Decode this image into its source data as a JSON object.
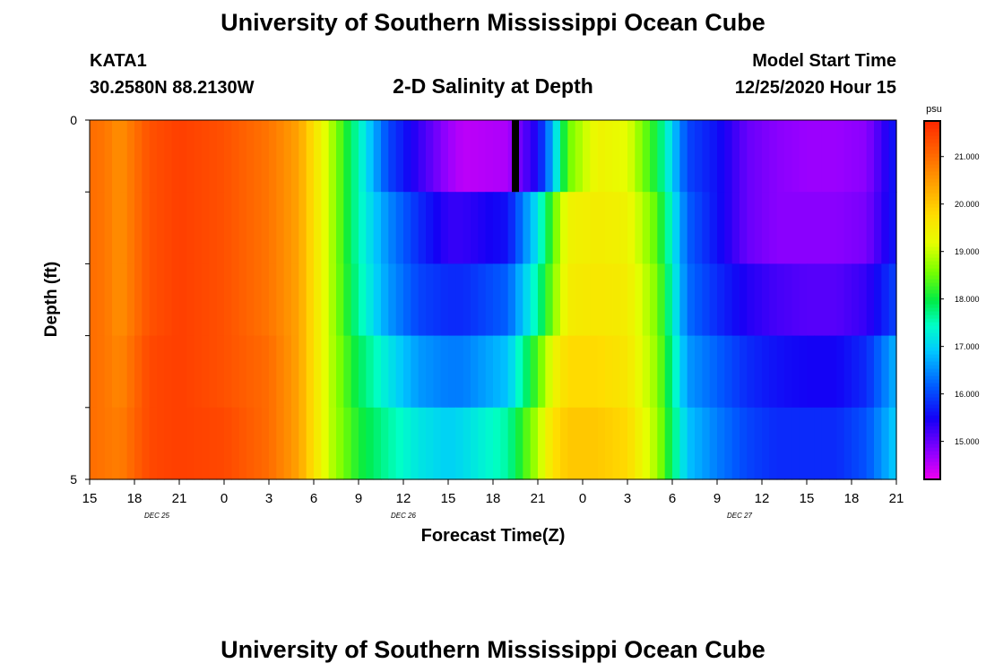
{
  "page": {
    "title_top": "University of Southern Mississippi Ocean Cube",
    "title_bottom": "University of Southern Mississippi Ocean Cube",
    "station": "KATA1",
    "coordinates": "30.2580N 88.2130W",
    "plot_title": "2-D Salinity at Depth",
    "model_start_label": "Model Start Time",
    "model_start_value": "12/25/2020 Hour 15"
  },
  "chart_data": {
    "type": "heatmap",
    "title": "2-D Salinity at Depth",
    "xlabel": "Forecast Time(Z)",
    "ylabel": "Depth (ft)",
    "y_ticks": [
      "0",
      "5"
    ],
    "ylim": [
      0,
      5
    ],
    "x_hours_start": 0,
    "x_hours_end": 54,
    "x_tick_labels": [
      "15",
      "18",
      "21",
      "0",
      "3",
      "6",
      "9",
      "12",
      "15",
      "18",
      "21",
      "0",
      "3",
      "6",
      "9",
      "12",
      "15",
      "18",
      "21"
    ],
    "date_labels": [
      {
        "label": "DEC  25",
        "hour": 4.5
      },
      {
        "label": "DEC  26",
        "hour": 21
      },
      {
        "label": "DEC  27",
        "hour": 43.5
      }
    ],
    "colorbar": {
      "unit": "psu",
      "min": 14.2,
      "max": 21.75,
      "tick_labels": [
        "21.000",
        "20.000",
        "19.000",
        "18.000",
        "17.000",
        "16.000",
        "15.000"
      ],
      "tick_values": [
        21,
        20,
        19,
        18,
        17,
        16,
        15
      ]
    },
    "depth_bins": 5,
    "key_hours": [
      0,
      1,
      2,
      4,
      6,
      9,
      12,
      14,
      16,
      18,
      20,
      22,
      24,
      25,
      28,
      30,
      31,
      32,
      34,
      36,
      38,
      40,
      42,
      44,
      46,
      48,
      50,
      52,
      54
    ],
    "key_values": [
      [
        21.0,
        20.9,
        20.6,
        21.3,
        21.5,
        21.3,
        20.9,
        20.4,
        19.0,
        17.5,
        16.0,
        15.3,
        14.7,
        14.5,
        14.6,
        15.5,
        16.8,
        18.5,
        19.4,
        19.2,
        18.0,
        16.0,
        15.6,
        15.0,
        14.8,
        14.7,
        14.7,
        14.8,
        15.7
      ],
      [
        21.0,
        20.9,
        20.6,
        21.3,
        21.5,
        21.3,
        20.9,
        20.4,
        19.0,
        17.5,
        16.5,
        15.8,
        15.3,
        15.3,
        15.6,
        17.2,
        18.4,
        19.4,
        19.5,
        19.4,
        18.4,
        16.2,
        15.6,
        15.0,
        14.8,
        14.8,
        14.8,
        14.9,
        15.7
      ],
      [
        21.0,
        20.9,
        20.6,
        21.3,
        21.5,
        21.3,
        20.9,
        20.4,
        19.0,
        17.6,
        16.6,
        16.0,
        15.8,
        15.8,
        16.2,
        17.6,
        18.6,
        19.5,
        19.6,
        19.5,
        18.6,
        16.3,
        15.8,
        15.4,
        15.2,
        15.1,
        15.1,
        15.3,
        16.0
      ],
      [
        21.0,
        20.9,
        20.7,
        21.4,
        21.5,
        21.3,
        21.0,
        20.4,
        19.0,
        17.9,
        17.2,
        16.6,
        16.4,
        16.4,
        16.9,
        18.4,
        19.3,
        19.8,
        19.8,
        19.6,
        18.7,
        16.6,
        16.2,
        15.8,
        15.6,
        15.5,
        15.5,
        15.8,
        16.8
      ],
      [
        21.0,
        20.9,
        20.8,
        21.4,
        21.5,
        21.4,
        21.0,
        20.4,
        19.0,
        18.1,
        17.6,
        17.2,
        17.0,
        17.1,
        17.6,
        18.9,
        19.7,
        20.0,
        20.0,
        19.8,
        18.8,
        16.9,
        16.4,
        16.0,
        15.8,
        15.8,
        15.8,
        16.1,
        17.0
      ]
    ],
    "missing_cell": {
      "hour": 28.5,
      "depth_bin": 0
    }
  }
}
